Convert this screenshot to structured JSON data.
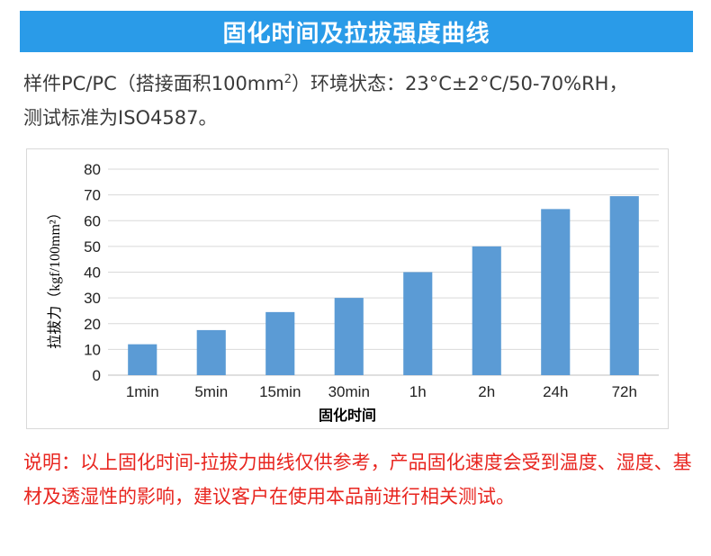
{
  "header": {
    "title": "固化时间及拉拔强度曲线"
  },
  "description": {
    "line1_prefix": "样件PC/PC（搭接面积100mm",
    "line1_sup": "2",
    "line1_suffix": "）环境状态：23°C±2°C/50-70%RH，",
    "line2": "测试标准为ISO4587。"
  },
  "chart_data": {
    "type": "bar",
    "xlabel": "固化时间",
    "ylabel": "拉拔力（kgf/100mm²）",
    "categories": [
      "1min",
      "5min",
      "15min",
      "30min",
      "1h",
      "2h",
      "24h",
      "72h"
    ],
    "values": [
      12,
      17.5,
      24.5,
      30,
      40,
      50,
      64.5,
      69.5
    ],
    "ylim": [
      0,
      80
    ],
    "yticks": [
      "0",
      "10",
      "20",
      "30",
      "40",
      "50",
      "60",
      "70",
      "80"
    ],
    "grid": true,
    "bar_color": "#5b9bd5"
  },
  "note": {
    "text": "说明：以上固化时间-拉拔力曲线仅供参考，产品固化速度会受到温度、湿度、基材及透湿性的影响，建议客户在使用本品前进行相关测试。"
  }
}
